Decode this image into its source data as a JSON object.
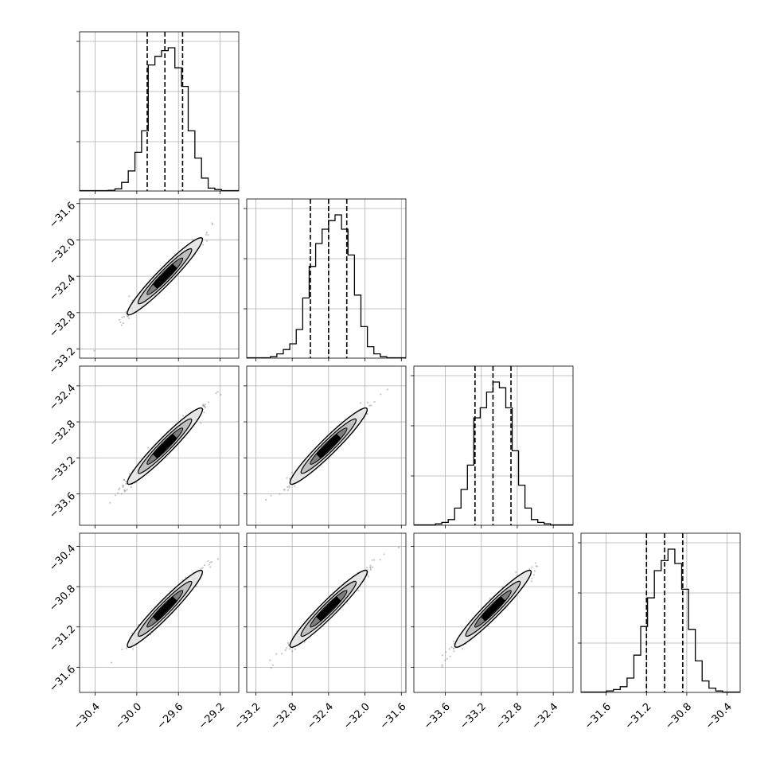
{
  "chart_data": {
    "type": "corner",
    "params": [
      {
        "index": 0,
        "range": [
          -30.55,
          -29.02
        ],
        "ticks": [
          -30.4,
          -30.0,
          -29.6,
          -29.2
        ],
        "tick_labels": [
          "−30.4",
          "−30.0",
          "−29.6",
          "−29.2"
        ],
        "quantiles": [
          -29.9,
          -29.73,
          -29.56
        ],
        "hist": [
          0.005,
          0.015,
          0.06,
          0.14,
          0.27,
          0.42,
          0.88,
          0.94,
          0.98,
          1.0,
          0.86,
          0.73,
          0.42,
          0.23,
          0.09,
          0.02,
          0.01
        ]
      },
      {
        "index": 1,
        "range": [
          -33.3,
          -31.55
        ],
        "ticks": [
          -33.2,
          -32.8,
          -32.4,
          -32.0,
          -31.6
        ],
        "tick_labels": [
          "−33.2",
          "−32.8",
          "−32.4",
          "−32.0",
          "−31.6"
        ],
        "ytick_labels": [
          "−33.2",
          "−32.8",
          "−32.4",
          "−32.0",
          "−31.6"
        ],
        "quantiles": [
          -32.6,
          -32.4,
          -32.2
        ],
        "hist": [
          0.01,
          0.03,
          0.06,
          0.1,
          0.2,
          0.42,
          0.64,
          0.8,
          0.9,
          0.96,
          1.0,
          0.9,
          0.72,
          0.44,
          0.22,
          0.08,
          0.03,
          0.01
        ]
      },
      {
        "index": 2,
        "range": [
          -33.95,
          -32.18
        ],
        "ticks": [
          -33.6,
          -33.2,
          -32.8,
          -32.4
        ],
        "tick_labels": [
          "−33.6",
          "−33.2",
          "−32.8",
          "−32.4"
        ],
        "ytick_labels": [
          "−33.6",
          "−33.2",
          "−32.8",
          "−32.4"
        ],
        "quantiles": [
          -33.27,
          -33.07,
          -32.87
        ],
        "hist": [
          0.01,
          0.02,
          0.04,
          0.12,
          0.25,
          0.42,
          0.75,
          0.82,
          0.93,
          1.0,
          0.96,
          0.82,
          0.52,
          0.28,
          0.12,
          0.04,
          0.02,
          0.01
        ]
      },
      {
        "index": 3,
        "range": [
          -31.85,
          -30.27
        ],
        "ticks": [
          -31.6,
          -31.2,
          -30.8,
          -30.4
        ],
        "tick_labels": [
          "−31.6",
          "−31.2",
          "−30.8",
          "−30.4"
        ],
        "ytick_labels": [
          "−31.6",
          "−31.2",
          "−30.8",
          "−30.4"
        ],
        "quantiles": [
          -31.2,
          -31.02,
          -30.84
        ],
        "hist": [
          0.01,
          0.02,
          0.04,
          0.1,
          0.26,
          0.46,
          0.66,
          0.85,
          0.92,
          1.0,
          0.9,
          0.72,
          0.44,
          0.22,
          0.08,
          0.03,
          0.01
        ]
      }
    ],
    "grid": true,
    "colors": {
      "line": "#000000",
      "grid": "#b0b0b0",
      "scatter": "#808080"
    }
  }
}
